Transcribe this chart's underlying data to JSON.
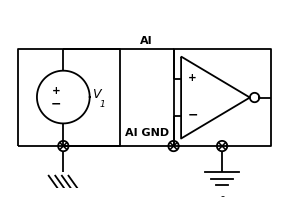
{
  "bg_color": "#ffffff",
  "line_color": "#000000",
  "ai_label": "AI",
  "aignd_label": "AI GND",
  "v_label": "V",
  "v_sub": "1",
  "minus_label": "-"
}
